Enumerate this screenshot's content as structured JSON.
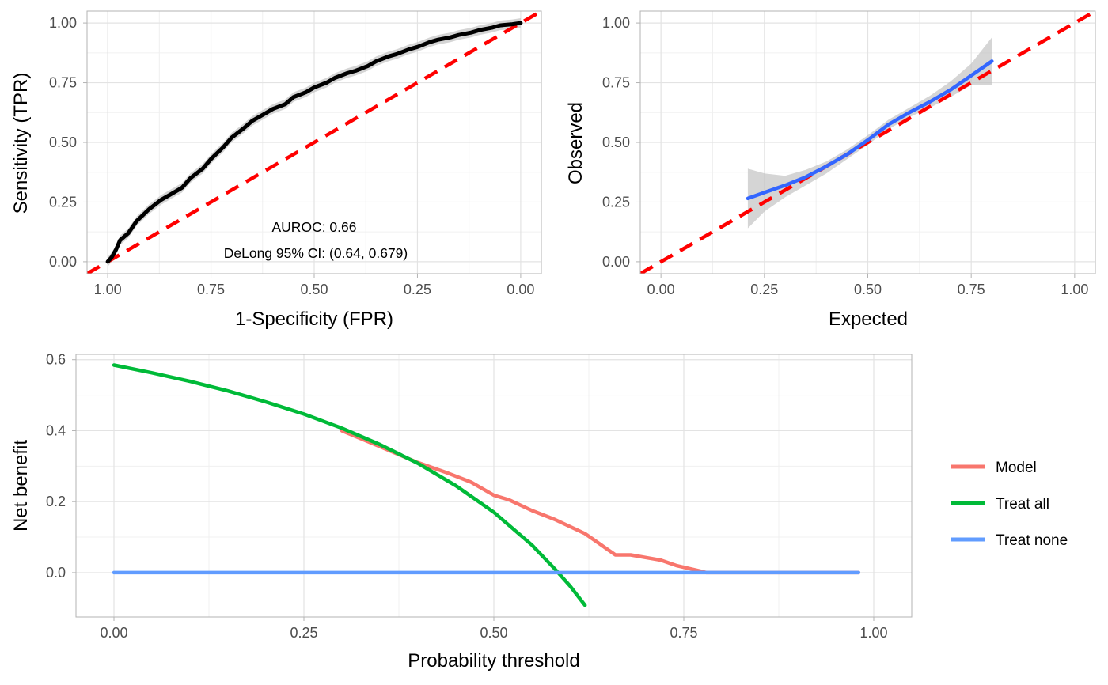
{
  "chart_data": [
    {
      "type": "line",
      "panel": "roc",
      "xlabel": "1-Specificity (FPR)",
      "ylabel": "Sensitivity (TPR)",
      "x_reversed": true,
      "xlim": [
        1.05,
        -0.05
      ],
      "ylim": [
        -0.05,
        1.05
      ],
      "xticks": [
        1.0,
        0.75,
        0.5,
        0.25,
        0.0
      ],
      "xtick_labels": [
        "1.00",
        "0.75",
        "0.50",
        "0.25",
        "0.00"
      ],
      "yticks": [
        0.0,
        0.25,
        0.5,
        0.75,
        1.0
      ],
      "ytick_labels": [
        "0.00",
        "0.25",
        "0.50",
        "0.75",
        "1.00"
      ],
      "grid": true,
      "annotations": [
        "AUROC: 0.66",
        "DeLong 95% CI: (0.64, 0.679)"
      ],
      "reference_line": {
        "style": "dashed",
        "color": "#ff0000",
        "x": [
          1.05,
          -0.05
        ],
        "y": [
          -0.05,
          1.05
        ]
      },
      "series": [
        {
          "color": "#000000",
          "ci_band_color": "#bebebe",
          "x": [
            1.0,
            0.99,
            0.98,
            0.97,
            0.95,
            0.93,
            0.9,
            0.87,
            0.85,
            0.82,
            0.8,
            0.77,
            0.75,
            0.72,
            0.7,
            0.67,
            0.65,
            0.62,
            0.6,
            0.57,
            0.55,
            0.52,
            0.5,
            0.47,
            0.45,
            0.42,
            0.4,
            0.37,
            0.35,
            0.32,
            0.3,
            0.27,
            0.25,
            0.22,
            0.2,
            0.17,
            0.15,
            0.12,
            0.1,
            0.07,
            0.05,
            0.02,
            0.0
          ],
          "y": [
            0.0,
            0.02,
            0.05,
            0.09,
            0.12,
            0.17,
            0.22,
            0.26,
            0.28,
            0.31,
            0.35,
            0.39,
            0.43,
            0.48,
            0.52,
            0.56,
            0.59,
            0.62,
            0.64,
            0.66,
            0.69,
            0.71,
            0.73,
            0.75,
            0.77,
            0.79,
            0.8,
            0.82,
            0.84,
            0.86,
            0.87,
            0.89,
            0.9,
            0.92,
            0.93,
            0.94,
            0.95,
            0.96,
            0.97,
            0.98,
            0.99,
            0.995,
            1.0
          ],
          "ci_halfwidth": 0.02
        }
      ]
    },
    {
      "type": "line",
      "panel": "calibration",
      "xlabel": "Expected",
      "ylabel": "Observed",
      "xlim": [
        -0.05,
        1.05
      ],
      "ylim": [
        -0.05,
        1.05
      ],
      "xticks": [
        0.0,
        0.25,
        0.5,
        0.75,
        1.0
      ],
      "xtick_labels": [
        "0.00",
        "0.25",
        "0.50",
        "0.75",
        "1.00"
      ],
      "yticks": [
        0.0,
        0.25,
        0.5,
        0.75,
        1.0
      ],
      "ytick_labels": [
        "0.00",
        "0.25",
        "0.50",
        "0.75",
        "1.00"
      ],
      "grid": true,
      "reference_line": {
        "style": "dashed",
        "color": "#ff0000",
        "x": [
          -0.05,
          1.05
        ],
        "y": [
          -0.05,
          1.05
        ]
      },
      "series": [
        {
          "color": "#3366ff",
          "ci_band_color": "#bebebe",
          "x": [
            0.21,
            0.25,
            0.3,
            0.35,
            0.4,
            0.45,
            0.5,
            0.55,
            0.6,
            0.65,
            0.7,
            0.75,
            0.8
          ],
          "y": [
            0.265,
            0.29,
            0.32,
            0.355,
            0.4,
            0.45,
            0.51,
            0.575,
            0.625,
            0.67,
            0.72,
            0.78,
            0.84
          ],
          "ci_lower": [
            0.14,
            0.21,
            0.27,
            0.32,
            0.37,
            0.43,
            0.49,
            0.555,
            0.605,
            0.645,
            0.69,
            0.74,
            0.74
          ],
          "ci_upper": [
            0.39,
            0.37,
            0.36,
            0.385,
            0.42,
            0.47,
            0.53,
            0.595,
            0.645,
            0.695,
            0.755,
            0.83,
            0.94
          ]
        }
      ]
    },
    {
      "type": "line",
      "panel": "decision_curve",
      "xlabel": "Probability threshold",
      "ylabel": "Net benefit",
      "xlim": [
        -0.05,
        1.05
      ],
      "ylim": [
        -0.125,
        0.615
      ],
      "xticks": [
        0.0,
        0.25,
        0.5,
        0.75,
        1.0
      ],
      "xtick_labels": [
        "0.00",
        "0.25",
        "0.50",
        "0.75",
        "1.00"
      ],
      "yticks": [
        0.0,
        0.2,
        0.4,
        0.6
      ],
      "ytick_labels": [
        "0.0",
        "0.2",
        "0.4",
        "0.6"
      ],
      "grid": true,
      "legend_position": "right",
      "series": [
        {
          "name": "Model",
          "color": "#f8766d",
          "x": [
            0.3,
            0.35,
            0.4,
            0.44,
            0.47,
            0.5,
            0.52,
            0.55,
            0.58,
            0.62,
            0.66,
            0.68,
            0.72,
            0.74,
            0.78,
            0.8,
            0.85,
            0.9,
            0.98
          ],
          "y": [
            0.4,
            0.355,
            0.31,
            0.28,
            0.255,
            0.218,
            0.205,
            0.175,
            0.15,
            0.11,
            0.05,
            0.05,
            0.035,
            0.02,
            0.0,
            0.0,
            0.0,
            0.0,
            0.0
          ]
        },
        {
          "name": "Treat all",
          "color": "#00ba38",
          "x": [
            0.0,
            0.05,
            0.1,
            0.15,
            0.2,
            0.25,
            0.3,
            0.35,
            0.4,
            0.45,
            0.5,
            0.55,
            0.58,
            0.6,
            0.62
          ],
          "y": [
            0.585,
            0.563,
            0.539,
            0.512,
            0.481,
            0.447,
            0.407,
            0.361,
            0.308,
            0.245,
            0.17,
            0.078,
            0.011,
            -0.037,
            -0.092
          ]
        },
        {
          "name": "Treat none",
          "color": "#619cff",
          "x": [
            0.0,
            0.98
          ],
          "y": [
            0.0,
            0.0
          ]
        }
      ]
    }
  ]
}
